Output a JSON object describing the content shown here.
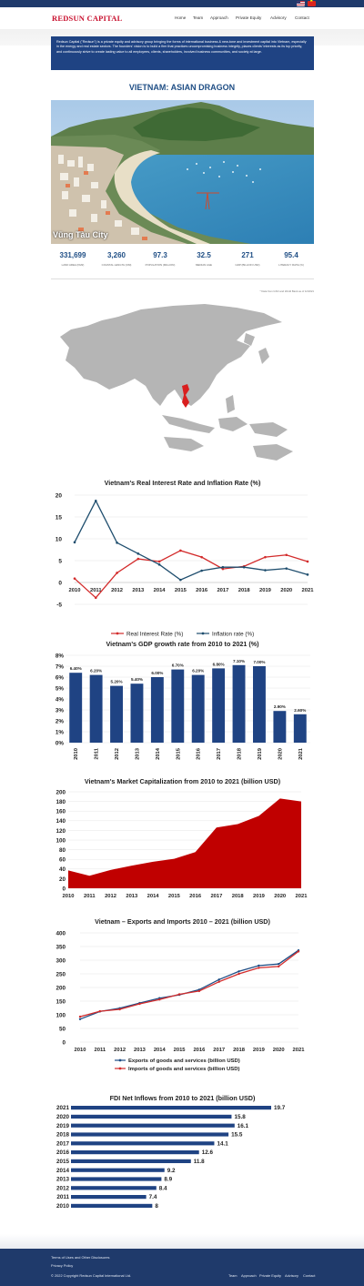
{
  "brand": {
    "logo": "REDSUN CAPITAL",
    "primary": "#1f3a6b",
    "accent": "#c8102e"
  },
  "languages": [
    "us-flag-icon",
    "vn-flag-icon"
  ],
  "nav": [
    "Home",
    "Team",
    "Approach",
    "Private Equity",
    "Advisory",
    "Contact"
  ],
  "intro": "Redsun Capital (\"Redsun\") is a private equity and advisory group bringing the forms of international business & new-tone and investment capital into Vietnam, especially in the energy and real estate sectors. The founders' vision is to build a firm that practices uncompromising business integrity, places clients' interests as its top priority, and continuously strive to create lasting value to all employees, clients, shareholders, involved business communities, and society at large.",
  "section_title": "VIETNAM: ASIAN DRAGON",
  "photo_caption": "Vũng Tàu City",
  "stats": [
    {
      "value": "331,699",
      "label": "LAND AREA (KM2)"
    },
    {
      "value": "3,260",
      "label": "COASTAL LENGTH (KM)"
    },
    {
      "value": "97.3",
      "label": "POPULATION (MILLION)"
    },
    {
      "value": "32.5",
      "label": "MEDIAN AGE"
    },
    {
      "value": "271",
      "label": "GDP (BILLION USD)"
    },
    {
      "value": "95.4",
      "label": "LITERACY RATE (%)"
    }
  ],
  "source_note": "* Data from GSO and World Bank as of 12/2021",
  "chart_data": [
    {
      "type": "line",
      "title": "Vietnam's Real Interest Rate and Inflation Rate (%)",
      "x": [
        "2010",
        "2011",
        "2012",
        "2013",
        "2014",
        "2015",
        "2016",
        "2017",
        "2018",
        "2019",
        "2020",
        "2021"
      ],
      "ylim": [
        -5,
        20
      ],
      "yticks": [
        -5,
        0,
        5,
        10,
        15,
        20
      ],
      "legend": "bottom",
      "series": [
        {
          "name": "Real Interest Rate (%)",
          "color": "#d32b2b",
          "values": [
            0.9,
            -3.5,
            2.2,
            5.4,
            4.8,
            7.3,
            5.8,
            3.1,
            3.7,
            5.8,
            6.3,
            4.8
          ]
        },
        {
          "name": "Inflation rate (%)",
          "color": "#1f4e6e",
          "values": [
            9.2,
            18.7,
            9.1,
            6.6,
            4.1,
            0.6,
            2.7,
            3.5,
            3.5,
            2.8,
            3.2,
            1.8
          ]
        }
      ]
    },
    {
      "type": "bar",
      "title": "Vietnam's GDP growth rate from 2010 to 2021 (%)",
      "categories": [
        "2010",
        "2011",
        "2012",
        "2013",
        "2014",
        "2015",
        "2016",
        "2017",
        "2018",
        "2019",
        "2020",
        "2021"
      ],
      "values": [
        6.4,
        6.2,
        5.2,
        5.4,
        6.0,
        6.7,
        6.2,
        6.8,
        7.1,
        7.0,
        2.9,
        2.6
      ],
      "labels": [
        "6.40%",
        "6.20%",
        "5.20%",
        "5.40%",
        "6.00%",
        "6.70%",
        "6.20%",
        "6.80%",
        "7.10%",
        "7.00%",
        "2.90%",
        "2.60%"
      ],
      "ylim": [
        0,
        8
      ],
      "yticks": [
        "0%",
        "1%",
        "2%",
        "3%",
        "4%",
        "5%",
        "6%",
        "7%",
        "8%"
      ],
      "color": "#1f4383"
    },
    {
      "type": "area",
      "title": "Vietnam's Market Capitalization from 2010 to 2021 (billion USD)",
      "x": [
        "2010",
        "2011",
        "2012",
        "2013",
        "2014",
        "2015",
        "2016",
        "2017",
        "2018",
        "2019",
        "2020",
        "2021"
      ],
      "values": [
        37,
        26,
        38,
        47,
        55,
        61,
        75,
        126,
        133,
        150,
        186,
        180
      ],
      "ylim": [
        0,
        200
      ],
      "yticks": [
        0,
        20,
        40,
        60,
        80,
        100,
        120,
        140,
        160,
        180,
        200
      ],
      "color": "#c00000"
    },
    {
      "type": "line",
      "title": "Vietnam – Exports and Imports 2010 – 2021 (billion USD)",
      "x": [
        "2010",
        "2011",
        "2012",
        "2013",
        "2014",
        "2015",
        "2016",
        "2017",
        "2018",
        "2019",
        "2020",
        "2021"
      ],
      "ylim": [
        0,
        400
      ],
      "yticks": [
        0,
        50,
        100,
        150,
        200,
        250,
        300,
        350,
        400
      ],
      "legend": "bottom",
      "series": [
        {
          "name": "Exports of goods and services (billion USD)",
          "color": "#1f4e85",
          "values": [
            84,
            112,
            124,
            143,
            161,
            173,
            192,
            229,
            259,
            280,
            286,
            336
          ]
        },
        {
          "name": "Imports of goods and services (billion USD)",
          "color": "#d32b2b",
          "values": [
            93,
            113,
            120,
            140,
            156,
            175,
            187,
            221,
            250,
            272,
            277,
            332
          ]
        }
      ]
    },
    {
      "type": "bar",
      "orientation": "horizontal",
      "title": "FDI Net Inflows from 2010 to 2021 (billion USD)",
      "categories": [
        "2021",
        "2020",
        "2019",
        "2018",
        "2017",
        "2016",
        "2015",
        "2014",
        "2013",
        "2012",
        "2011",
        "2010"
      ],
      "values": [
        19.7,
        15.8,
        16.1,
        15.5,
        14.1,
        12.6,
        11.8,
        9.2,
        8.9,
        8.4,
        7.4,
        8
      ],
      "labels": [
        "19.7",
        "15.8",
        "16.1",
        "15.5",
        "14.1",
        "12.6",
        "11.8",
        "9.2",
        "8.9",
        "8.4",
        "7.4",
        "8"
      ],
      "color": "#1f4383"
    }
  ],
  "footer": {
    "links": [
      "Terms of Uses and Other Disclosures",
      "Privacy Policy"
    ],
    "copyright": "© 2022 Copyright Redsun Capital International Ltd.",
    "nav": [
      "Team",
      "Approach",
      "Private Equity",
      "Advisory",
      "Contact"
    ]
  }
}
